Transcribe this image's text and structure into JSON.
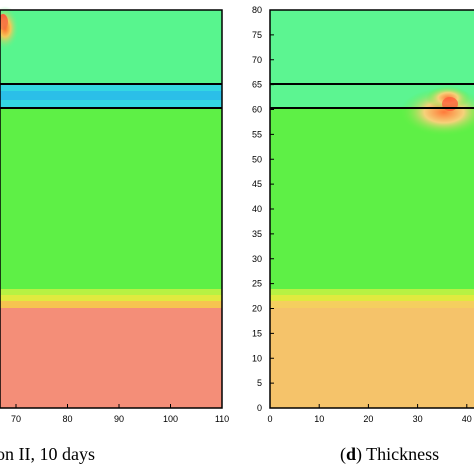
{
  "chart_data": [
    {
      "type": "heatmap",
      "caption": "on II, 10 days",
      "x_ticks": [
        70,
        80,
        90,
        100,
        110
      ],
      "layers": [
        {
          "y_range": [
            65,
            80
          ],
          "band": "upper layer",
          "color": "#58f58e"
        },
        {
          "y_range": [
            60,
            65
          ],
          "band": "thin layer",
          "color": "#33d7e2"
        },
        {
          "y_range": [
            21,
            60
          ],
          "band": "middle layer",
          "color": "#5ef046"
        },
        {
          "y_range": [
            20,
            21
          ],
          "band": "transition",
          "color": "#d6f03c"
        },
        {
          "y_range": [
            0,
            20
          ],
          "band": "lower layer",
          "color": "#f48e78"
        }
      ]
    },
    {
      "type": "heatmap",
      "caption_bold": "d",
      "caption_rest": ") Thickness",
      "xlim": [
        0,
        45
      ],
      "ylim": [
        0,
        80
      ],
      "x_ticks": [
        0,
        10,
        20,
        30,
        40
      ],
      "y_ticks": [
        0,
        5,
        10,
        15,
        20,
        25,
        30,
        35,
        40,
        45,
        50,
        55,
        60,
        65,
        70,
        75,
        80
      ],
      "layers": [
        {
          "y_range": [
            65,
            80
          ],
          "band": "upper layer",
          "color": "#5cf591"
        },
        {
          "y_range": [
            60,
            65
          ],
          "band": "thin layer",
          "color": "#5cf591"
        },
        {
          "y_range": [
            21,
            60
          ],
          "band": "middle layer",
          "color": "#5ef046"
        },
        {
          "y_range": [
            20,
            21
          ],
          "band": "transition",
          "color": "#d6f03c"
        },
        {
          "y_range": [
            0,
            20
          ],
          "band": "lower layer",
          "color": "#f5c36a"
        }
      ],
      "interface_lines_y": [
        60,
        65
      ]
    }
  ]
}
